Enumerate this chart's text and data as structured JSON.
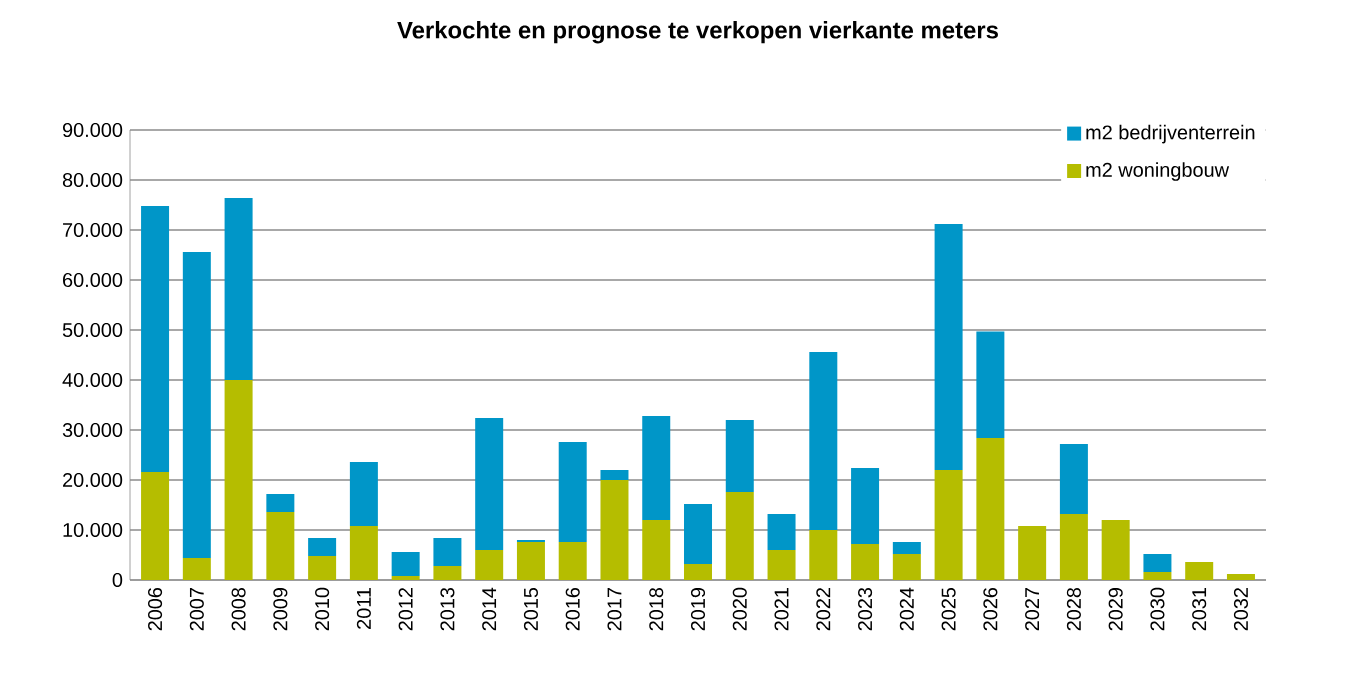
{
  "chart_data": {
    "type": "bar",
    "title": "Verkochte en prognose te verkopen vierkante meters",
    "categories": [
      "2006",
      "2007",
      "2008",
      "2009",
      "2010",
      "2011",
      "2012",
      "2013",
      "2014",
      "2015",
      "2016",
      "2017",
      "2018",
      "2019",
      "2020",
      "2021",
      "2022",
      "2023",
      "2024",
      "2025",
      "2026",
      "2027",
      "2028",
      "2029",
      "2030",
      "2031",
      "2032"
    ],
    "stacked": true,
    "series": [
      {
        "name": "m2 woningbouw",
        "color": "#b5bd00",
        "values": [
          21600,
          4400,
          40000,
          13600,
          4800,
          10800,
          800,
          2800,
          6000,
          7600,
          7600,
          20000,
          12000,
          3200,
          17600,
          6000,
          10000,
          7200,
          5200,
          22000,
          28400,
          10800,
          13200,
          12000,
          1600,
          3600,
          1200
        ]
      },
      {
        "name": "m2 bedrijventerrein",
        "color": "#0096c8",
        "values": [
          53200,
          61200,
          36400,
          3600,
          3600,
          12800,
          4800,
          5600,
          26400,
          400,
          20000,
          2000,
          20800,
          12000,
          14400,
          7200,
          35600,
          15200,
          2400,
          49200,
          21300,
          0,
          14000,
          0,
          3600,
          0,
          0
        ]
      }
    ],
    "ylim": [
      0,
      90000
    ],
    "yticks": [
      {
        "value": 0,
        "label": "0"
      },
      {
        "value": 10000,
        "label": "10.000"
      },
      {
        "value": 20000,
        "label": "20.000"
      },
      {
        "value": 30000,
        "label": "30.000"
      },
      {
        "value": 40000,
        "label": "40.000"
      },
      {
        "value": 50000,
        "label": "50.000"
      },
      {
        "value": 60000,
        "label": "60.000"
      },
      {
        "value": 70000,
        "label": "70.000"
      },
      {
        "value": 80000,
        "label": "80.000"
      },
      {
        "value": 90000,
        "label": "90.000"
      }
    ],
    "grid": "y",
    "legend": "top right"
  }
}
